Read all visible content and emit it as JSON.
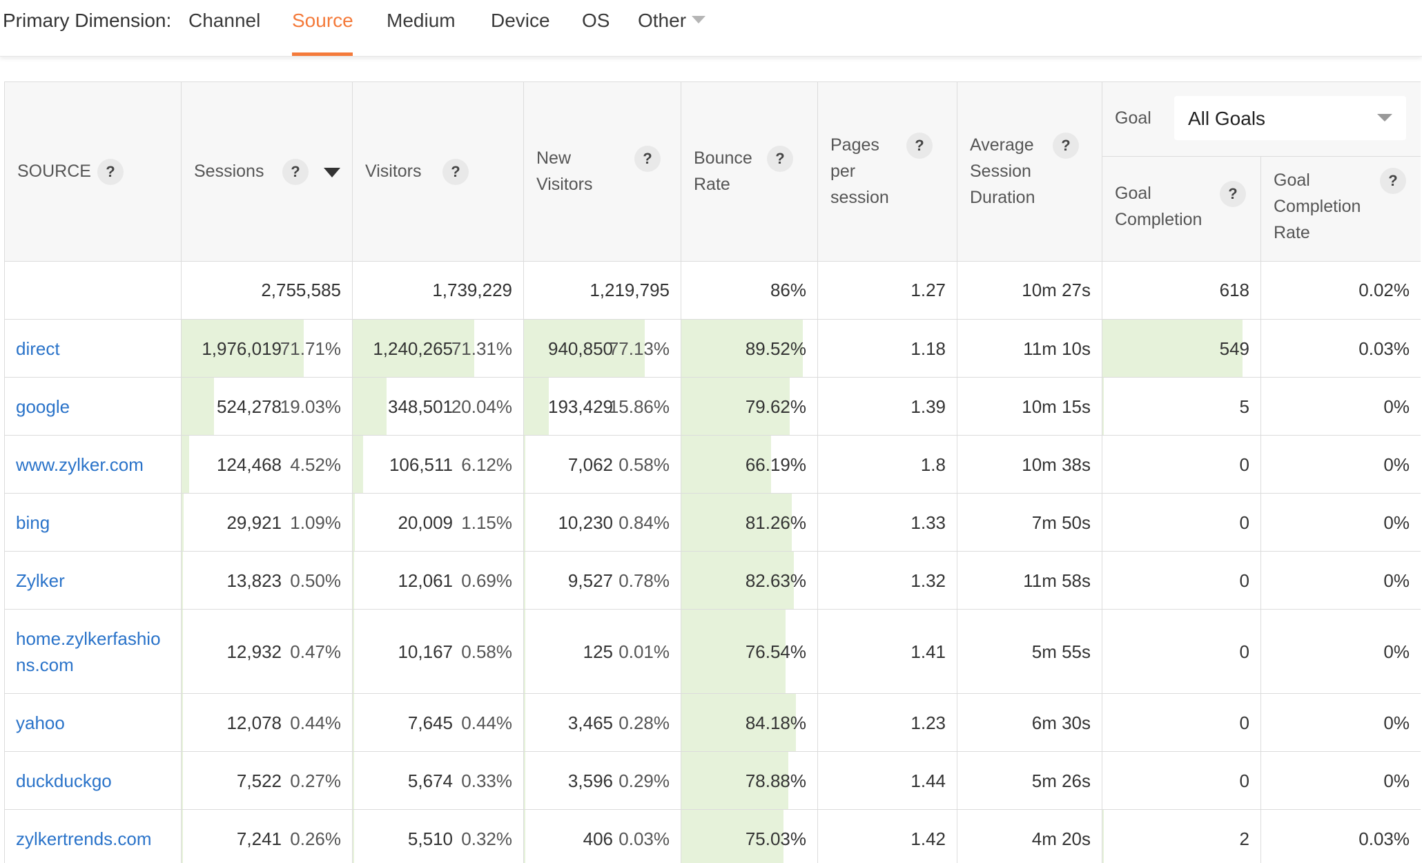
{
  "dimension_bar": {
    "label": "Primary Dimension:",
    "tabs": [
      {
        "label": "Channel",
        "active": false
      },
      {
        "label": "Source",
        "active": true
      },
      {
        "label": "Medium",
        "active": false
      },
      {
        "label": "Device",
        "active": false
      },
      {
        "label": "OS",
        "active": false
      },
      {
        "label": "Other",
        "active": false
      }
    ],
    "active_color": "#f47a3a"
  },
  "table": {
    "headers": {
      "source": "SOURCE",
      "sessions": "Sessions",
      "visitors": "Visitors",
      "new_visitors": [
        "New",
        "Visitors"
      ],
      "bounce_rate": [
        "Bounce",
        "Rate"
      ],
      "pages_per_session": [
        "Pages",
        "per",
        "session"
      ],
      "avg_session_duration": [
        "Average",
        "Session",
        "Duration"
      ],
      "goal": "Goal",
      "goal_select": "All Goals",
      "goal_completion": [
        "Goal",
        "Completion"
      ],
      "goal_completion_rate": [
        "Goal",
        "Completion",
        "Rate"
      ],
      "help": "?"
    },
    "totals": {
      "sessions": "2,755,585",
      "visitors": "1,739,229",
      "new_visitors": "1,219,795",
      "bounce_rate": "86%",
      "pages_per_session": "1.27",
      "avg_session_duration": "10m 27s",
      "goal_completion": "618",
      "goal_completion_rate": "0.02%"
    },
    "bar_color": "#e6f2da",
    "rows": [
      {
        "source": [
          "direct"
        ],
        "sessions": "1,976,019",
        "sessions_pct": "71.71%",
        "visitors": "1,240,265",
        "visitors_pct": "71.31%",
        "new_visitors": "940,850",
        "new_visitors_pct": "77.13%",
        "bounce_rate": "89.52%",
        "bounce_level": 0.8952,
        "pages": "1.18",
        "duration": "11m 10s",
        "goal_completion": "549",
        "goal_level": 0.8883,
        "goal_rate": "0.03%"
      },
      {
        "source": [
          "google"
        ],
        "sessions": "524,278",
        "sessions_pct": "19.03%",
        "visitors": "348,501",
        "visitors_pct": "20.04%",
        "new_visitors": "193,429",
        "new_visitors_pct": "15.86%",
        "bounce_rate": "79.62%",
        "bounce_level": 0.7962,
        "pages": "1.39",
        "duration": "10m 15s",
        "goal_completion": "5",
        "goal_level": 0.008,
        "goal_rate": "0%"
      },
      {
        "source": [
          "www.zylker.com"
        ],
        "sessions": "124,468",
        "sessions_pct": "4.52%",
        "visitors": "106,511",
        "visitors_pct": "6.12%",
        "new_visitors": "7,062",
        "new_visitors_pct": "0.58%",
        "bounce_rate": "66.19%",
        "bounce_level": 0.6619,
        "pages": "1.8",
        "duration": "10m 38s",
        "goal_completion": "0",
        "goal_level": 0,
        "goal_rate": "0%"
      },
      {
        "source": [
          "bing"
        ],
        "sessions": "29,921",
        "sessions_pct": "1.09%",
        "visitors": "20,009",
        "visitors_pct": "1.15%",
        "new_visitors": "10,230",
        "new_visitors_pct": "0.84%",
        "bounce_rate": "81.26%",
        "bounce_level": 0.8126,
        "pages": "1.33",
        "duration": "7m 50s",
        "goal_completion": "0",
        "goal_level": 0,
        "goal_rate": "0%"
      },
      {
        "source": [
          "Zylker"
        ],
        "sessions": "13,823",
        "sessions_pct": "0.50%",
        "visitors": "12,061",
        "visitors_pct": "0.69%",
        "new_visitors": "9,527",
        "new_visitors_pct": "0.78%",
        "bounce_rate": "82.63%",
        "bounce_level": 0.8263,
        "pages": "1.32",
        "duration": "11m 58s",
        "goal_completion": "0",
        "goal_level": 0,
        "goal_rate": "0%"
      },
      {
        "source": [
          "home.zylkerfashio",
          "ns.com"
        ],
        "sessions": "12,932",
        "sessions_pct": "0.47%",
        "visitors": "10,167",
        "visitors_pct": "0.58%",
        "new_visitors": "125",
        "new_visitors_pct": "0.01%",
        "bounce_rate": "76.54%",
        "bounce_level": 0.7654,
        "pages": "1.41",
        "duration": "5m 55s",
        "goal_completion": "0",
        "goal_level": 0,
        "goal_rate": "0%"
      },
      {
        "source": [
          "yahoo"
        ],
        "sessions": "12,078",
        "sessions_pct": "0.44%",
        "visitors": "7,645",
        "visitors_pct": "0.44%",
        "new_visitors": "3,465",
        "new_visitors_pct": "0.28%",
        "bounce_rate": "84.18%",
        "bounce_level": 0.8418,
        "pages": "1.23",
        "duration": "6m 30s",
        "goal_completion": "0",
        "goal_level": 0,
        "goal_rate": "0%"
      },
      {
        "source": [
          "duckduckgo"
        ],
        "sessions": "7,522",
        "sessions_pct": "0.27%",
        "visitors": "5,674",
        "visitors_pct": "0.33%",
        "new_visitors": "3,596",
        "new_visitors_pct": "0.29%",
        "bounce_rate": "78.88%",
        "bounce_level": 0.7888,
        "pages": "1.44",
        "duration": "5m 26s",
        "goal_completion": "0",
        "goal_level": 0,
        "goal_rate": "0%"
      },
      {
        "source": [
          "zylkertrends.com"
        ],
        "sessions": "7,241",
        "sessions_pct": "0.26%",
        "visitors": "5,510",
        "visitors_pct": "0.32%",
        "new_visitors": "406",
        "new_visitors_pct": "0.03%",
        "bounce_rate": "75.03%",
        "bounce_level": 0.7503,
        "pages": "1.42",
        "duration": "4m 20s",
        "goal_completion": "2",
        "goal_level": 0.003,
        "goal_rate": "0.03%"
      }
    ]
  }
}
